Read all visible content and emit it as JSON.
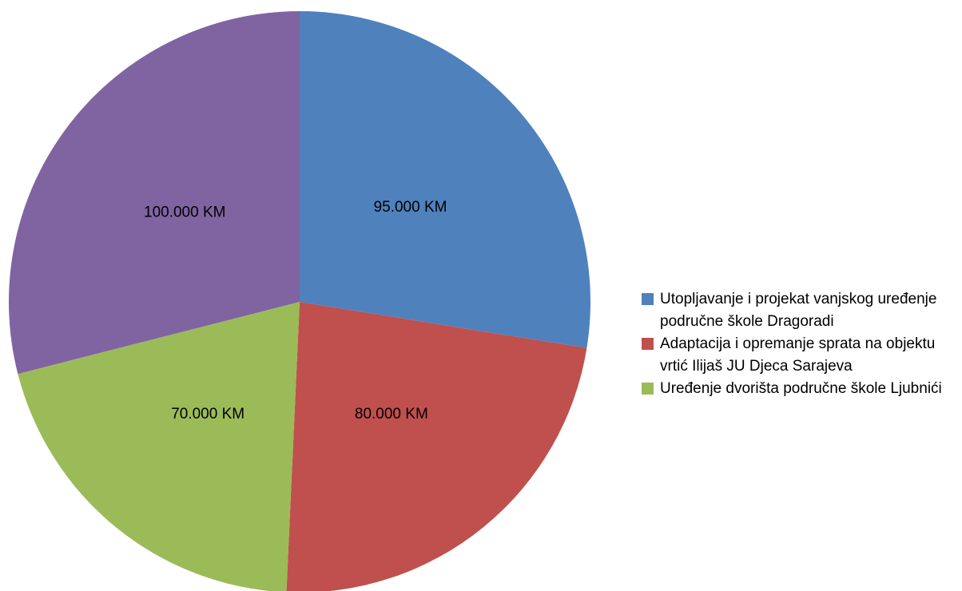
{
  "chart_data": {
    "type": "pie",
    "categories": [
      "Utopljavanje i projekat vanjskog uređenje područne škole Dragoradi",
      "Adaptacija i opremanje sprata na objektu vrtić Ilijaš JU Djeca Sarajeva",
      "Uređenje dvorišta područne škole Ljubnići",
      null
    ],
    "values": [
      95000,
      80000,
      70000,
      100000
    ],
    "value_labels": [
      "95.000 KM",
      "80.000 KM",
      "70.000 KM",
      "100.000 KM"
    ],
    "colors": [
      "#4f81bd",
      "#c0504d",
      "#9bbb59",
      "#8064a2"
    ],
    "legend": "right"
  }
}
